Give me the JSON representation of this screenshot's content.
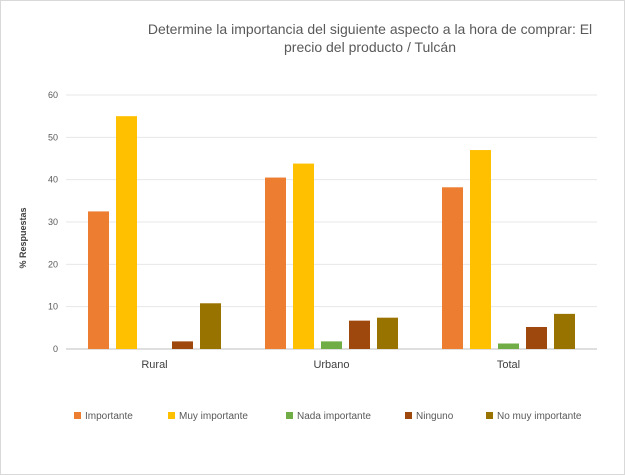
{
  "chart_data": {
    "type": "bar",
    "title": "Determine la importancia del siguiente aspecto a la hora de comprar: El precio del producto / Tulcán",
    "xlabel": "",
    "ylabel": "% Respuestas",
    "ylim": [
      0,
      60
    ],
    "yticks": [
      "0",
      "10",
      "20",
      "30",
      "40",
      "50",
      "60"
    ],
    "grid": true,
    "legend_position": "bottom",
    "categories": [
      "Rural",
      "Urbano",
      "Total"
    ],
    "series": [
      {
        "name": "Importante",
        "color": "#ED7D31",
        "values": [
          32.5,
          40.5,
          38.2
        ]
      },
      {
        "name": "Muy importante",
        "color": "#FFC000",
        "values": [
          55.0,
          43.8,
          47.0
        ]
      },
      {
        "name": "Nada importante",
        "color": "#70AD47",
        "values": [
          0,
          1.8,
          1.3
        ]
      },
      {
        "name": "Ninguno",
        "color": "#9E480E",
        "values": [
          1.8,
          6.7,
          5.2
        ]
      },
      {
        "name": "No muy importante",
        "color": "#997300",
        "values": [
          10.8,
          7.4,
          8.3
        ]
      }
    ]
  }
}
